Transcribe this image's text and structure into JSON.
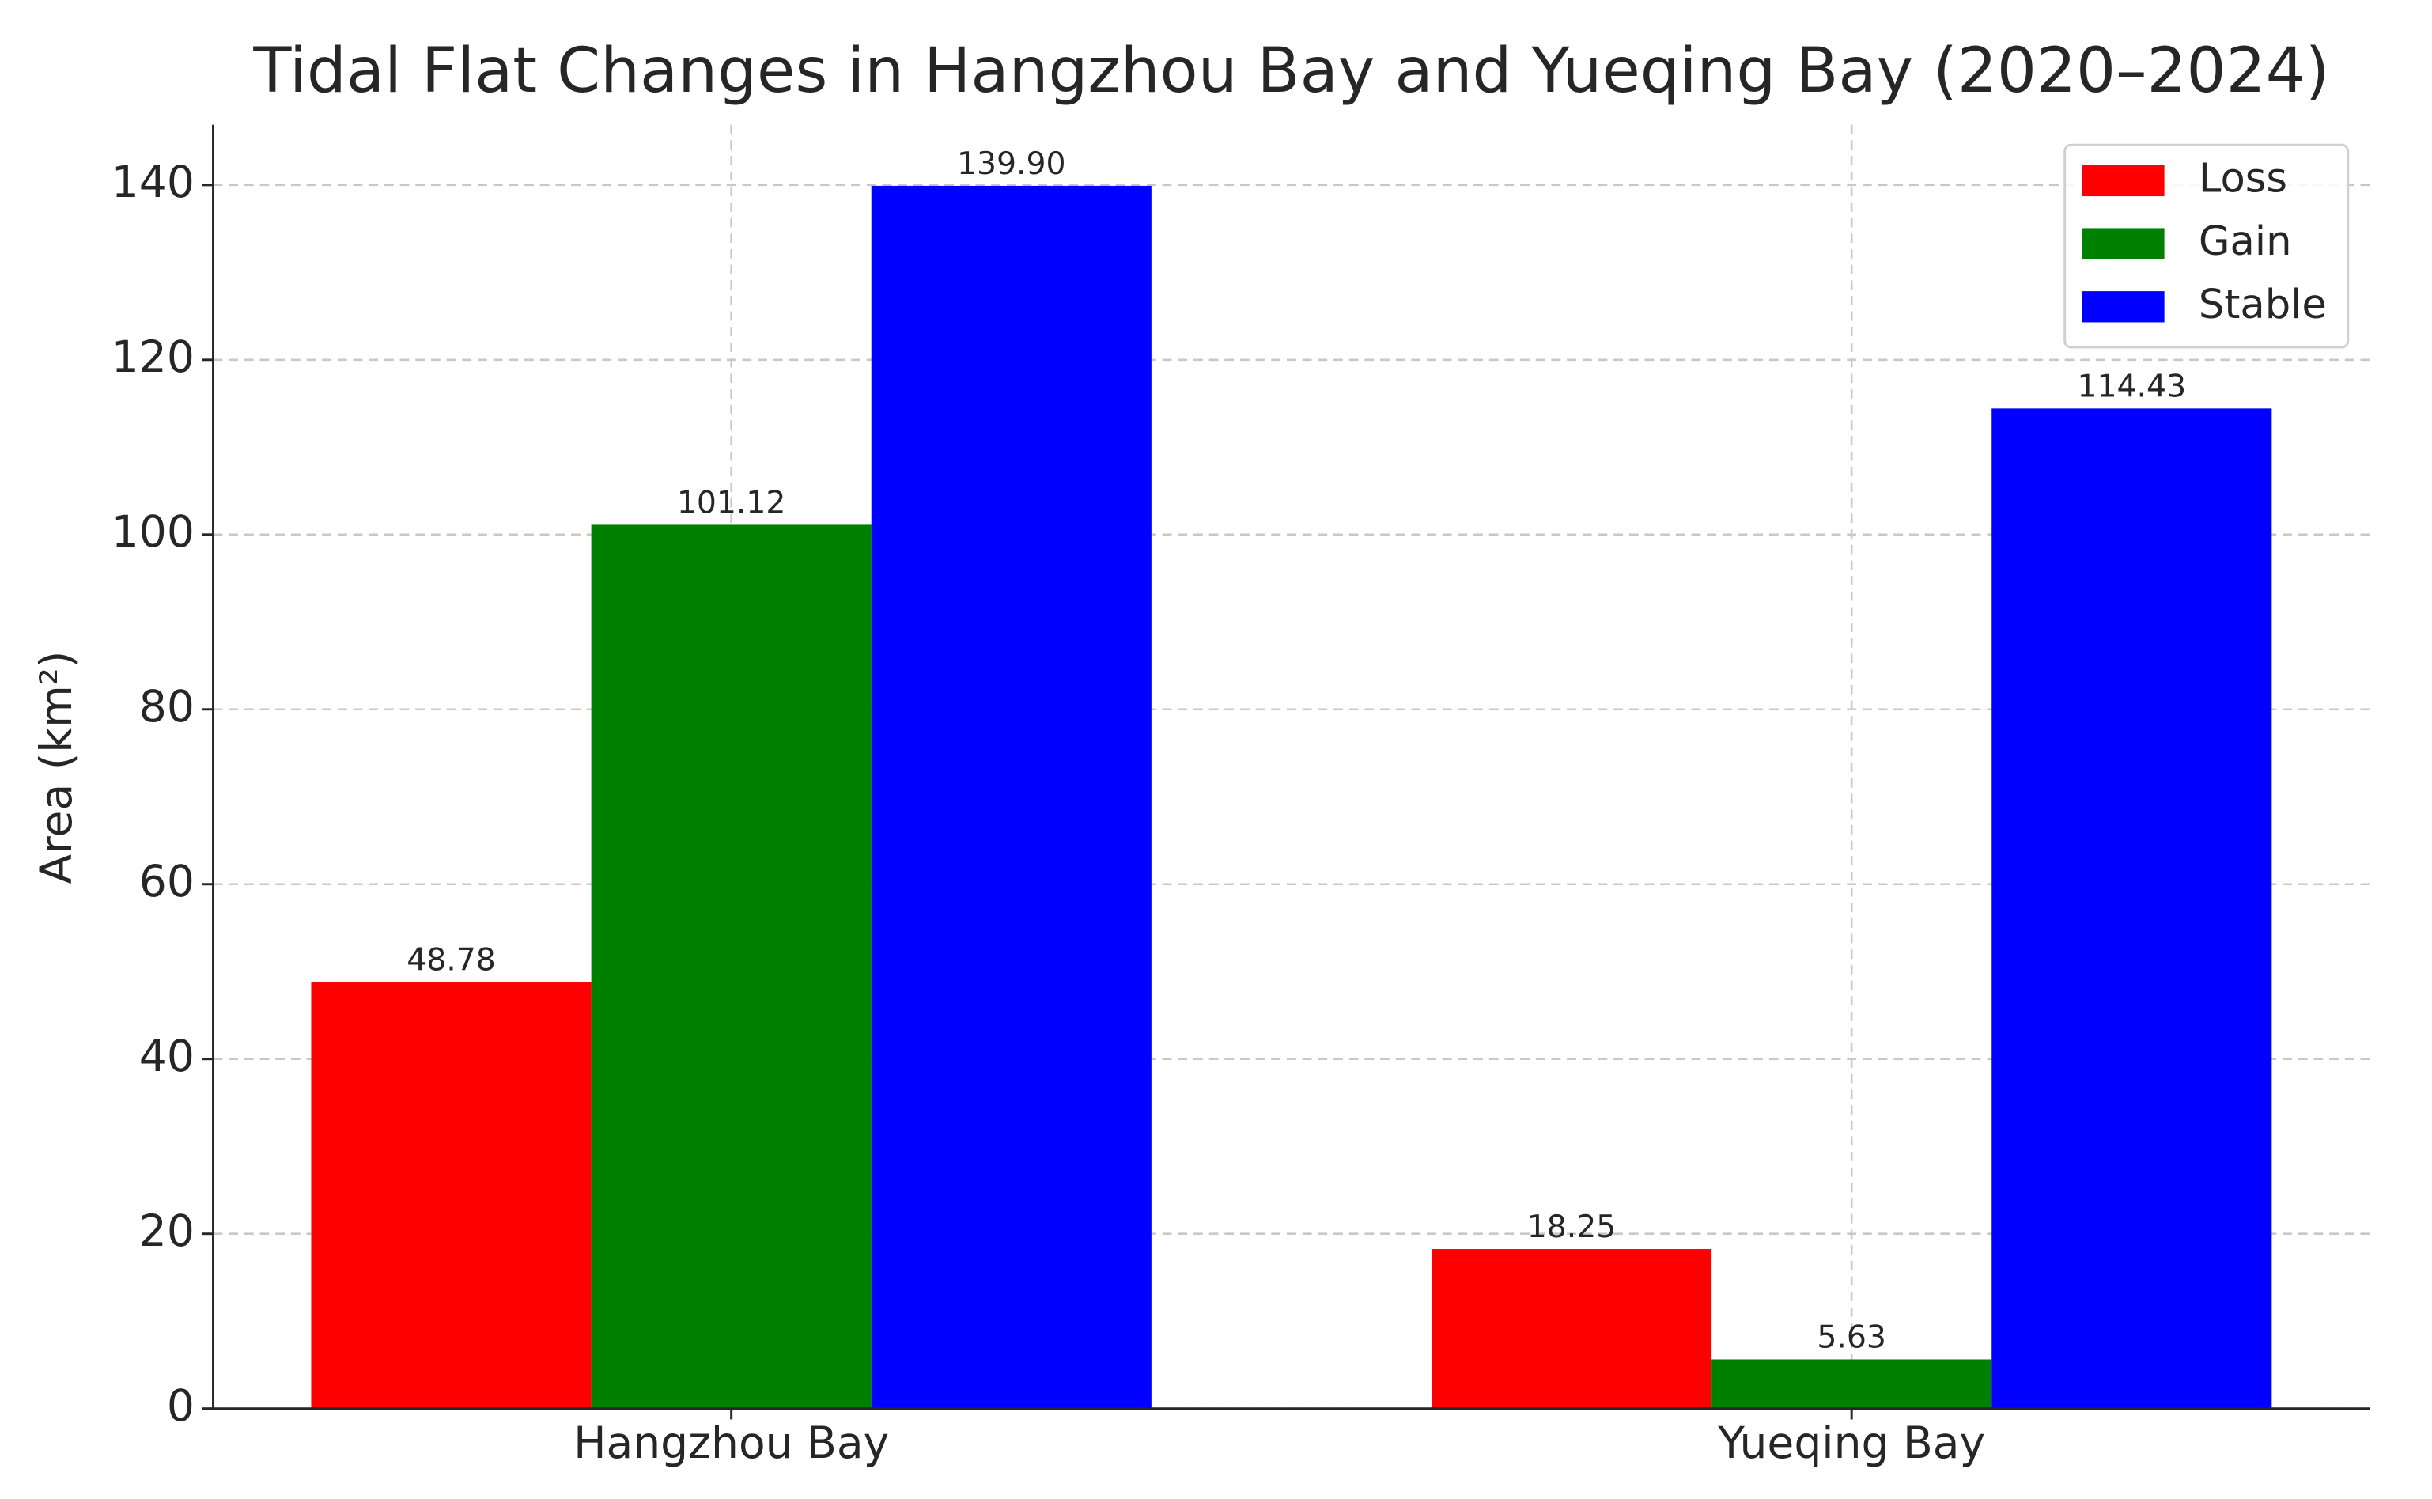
{
  "chart_data": {
    "type": "bar",
    "title": "Tidal Flat Changes in Hangzhou Bay and Yueqing Bay (2020–2024)",
    "y_label": "Area (km²)",
    "categories": [
      "Hangzhou Bay",
      "Yueqing Bay"
    ],
    "series": [
      {
        "name": "Loss",
        "color": "#ff0000",
        "values": [
          48.78,
          18.25
        ],
        "value_labels": [
          "48.78",
          "18.25"
        ]
      },
      {
        "name": "Gain",
        "color": "#008000",
        "values": [
          101.12,
          5.63
        ],
        "value_labels": [
          "101.12",
          "5.63"
        ]
      },
      {
        "name": "Stable",
        "color": "#0000ff",
        "values": [
          139.9,
          114.43
        ],
        "value_labels": [
          "139.90",
          "114.43"
        ]
      }
    ],
    "ylim": [
      0,
      146.9
    ],
    "yticks": [
      0,
      20,
      40,
      60,
      80,
      100,
      120,
      140
    ],
    "grid": true,
    "legend": "upper right"
  }
}
